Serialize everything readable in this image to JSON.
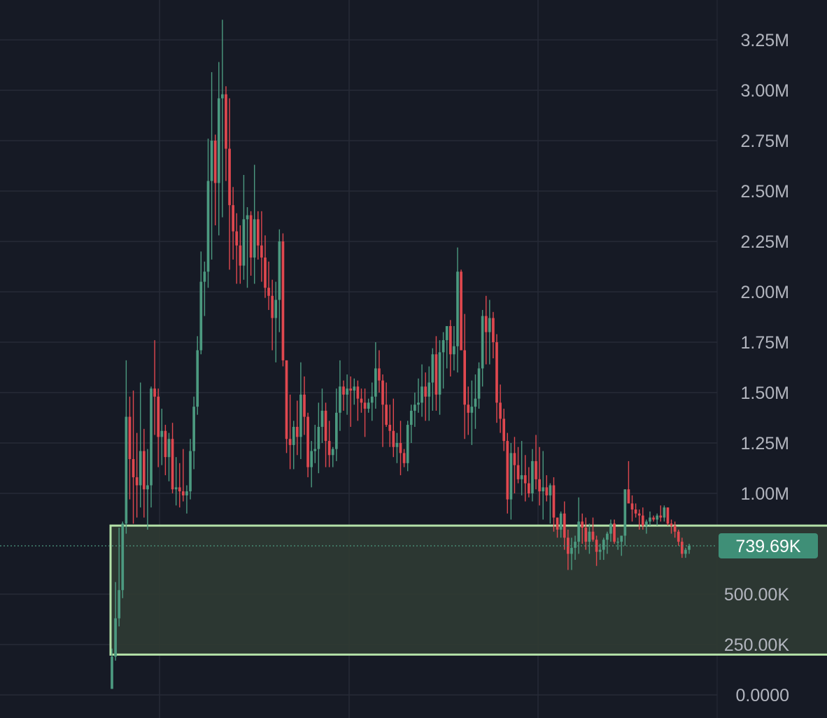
{
  "colors": {
    "background": "#161a25",
    "grid": "#262a36",
    "up": "#4c9a80",
    "down": "#e0484f",
    "axis_text": "#b2b5be",
    "zone_fill": "#2f3a33",
    "zone_stroke": "#b4e1a8",
    "price_line": "#4c9a80",
    "price_badge": "#3f8f77"
  },
  "chart_data": {
    "type": "candlestick",
    "ylim": [
      0,
      3350000
    ],
    "y_ticks": [
      {
        "value": 3250000,
        "label": "3.25M"
      },
      {
        "value": 3000000,
        "label": "3.00M"
      },
      {
        "value": 2750000,
        "label": "2.75M"
      },
      {
        "value": 2500000,
        "label": "2.50M"
      },
      {
        "value": 2250000,
        "label": "2.25M"
      },
      {
        "value": 2000000,
        "label": "2.00M"
      },
      {
        "value": 1750000,
        "label": "1.75M"
      },
      {
        "value": 1500000,
        "label": "1.50M"
      },
      {
        "value": 1250000,
        "label": "1.25M"
      },
      {
        "value": 1000000,
        "label": "1.00M"
      },
      {
        "value": 500000,
        "label": "500.00K"
      },
      {
        "value": 250000,
        "label": "250.00K"
      },
      {
        "value": 0,
        "label": "0.0000"
      }
    ],
    "grid": true,
    "last_price": {
      "value": 739690,
      "label": "739.69K"
    },
    "highlight_zone": {
      "low": 200000,
      "high": 840000,
      "start_candle": 0,
      "end_candle": 199
    },
    "candles": [
      [
        30,
        230,
        30,
        190
      ],
      [
        190,
        560,
        170,
        380
      ],
      [
        380,
        830,
        340,
        520
      ],
      [
        520,
        860,
        480,
        850
      ],
      [
        850,
        1660,
        800,
        1380
      ],
      [
        1380,
        1480,
        970,
        1170
      ],
      [
        1170,
        1510,
        850,
        1080
      ],
      [
        1080,
        1300,
        880,
        1040
      ],
      [
        1040,
        1550,
        930,
        1210
      ],
      [
        1210,
        1320,
        880,
        1020
      ],
      [
        1020,
        1220,
        820,
        1040
      ],
      [
        1040,
        1530,
        930,
        1520
      ],
      [
        1520,
        1760,
        1290,
        1480
      ],
      [
        1480,
        1520,
        1130,
        1280
      ],
      [
        1280,
        1420,
        1140,
        1310
      ],
      [
        1310,
        1340,
        1090,
        1180
      ],
      [
        1180,
        1300,
        1060,
        1270
      ],
      [
        1270,
        1350,
        1000,
        1020
      ],
      [
        1020,
        1180,
        940,
        1030
      ],
      [
        1030,
        1150,
        930,
        1010
      ],
      [
        1010,
        1220,
        960,
        990
      ],
      [
        990,
        1040,
        900,
        1010
      ],
      [
        1010,
        1270,
        970,
        1210
      ],
      [
        1210,
        1480,
        1120,
        1430
      ],
      [
        1430,
        1780,
        1390,
        1710
      ],
      [
        1710,
        2200,
        1690,
        2050
      ],
      [
        2050,
        2150,
        1880,
        2100
      ],
      [
        2100,
        2760,
        2020,
        2550
      ],
      [
        2550,
        3090,
        2160,
        2750
      ],
      [
        2750,
        2780,
        2330,
        2540
      ],
      [
        2540,
        3140,
        2280,
        2960
      ],
      [
        2960,
        3350,
        2370,
        2980
      ],
      [
        2980,
        3020,
        2550,
        2710
      ],
      [
        2710,
        2960,
        2110,
        2430
      ],
      [
        2430,
        2520,
        2160,
        2300
      ],
      [
        2300,
        2390,
        2040,
        2230
      ],
      [
        2230,
        2330,
        2040,
        2130
      ],
      [
        2130,
        2580,
        2060,
        2360
      ],
      [
        2360,
        2420,
        2020,
        2380
      ],
      [
        2380,
        2400,
        2080,
        2170
      ],
      [
        2170,
        2630,
        2040,
        2360
      ],
      [
        2360,
        2400,
        2160,
        2230
      ],
      [
        2230,
        2400,
        2050,
        2170
      ],
      [
        2170,
        2280,
        1970,
        2020
      ],
      [
        2020,
        2150,
        1910,
        1980
      ],
      [
        1980,
        2060,
        1710,
        1870
      ],
      [
        1870,
        2050,
        1650,
        1960
      ],
      [
        1960,
        2310,
        1800,
        2250
      ],
      [
        2250,
        2290,
        1630,
        1660
      ],
      [
        1660,
        1660,
        1200,
        1270
      ],
      [
        1270,
        1490,
        1120,
        1240
      ],
      [
        1240,
        1360,
        1120,
        1330
      ],
      [
        1330,
        1460,
        1190,
        1280
      ],
      [
        1280,
        1650,
        1170,
        1490
      ],
      [
        1490,
        1580,
        1290,
        1380
      ],
      [
        1380,
        1400,
        1080,
        1130
      ],
      [
        1130,
        1260,
        1030,
        1210
      ],
      [
        1210,
        1340,
        1150,
        1220
      ],
      [
        1220,
        1450,
        1100,
        1330
      ],
      [
        1330,
        1520,
        1250,
        1410
      ],
      [
        1410,
        1450,
        1130,
        1260
      ],
      [
        1260,
        1360,
        1130,
        1190
      ],
      [
        1190,
        1230,
        1130,
        1220
      ],
      [
        1220,
        1520,
        1160,
        1400
      ],
      [
        1400,
        1660,
        1310,
        1530
      ],
      [
        1530,
        1560,
        1410,
        1490
      ],
      [
        1490,
        1590,
        1390,
        1520
      ],
      [
        1520,
        1580,
        1330,
        1510
      ],
      [
        1510,
        1570,
        1440,
        1530
      ],
      [
        1530,
        1560,
        1360,
        1470
      ],
      [
        1470,
        1520,
        1400,
        1450
      ],
      [
        1450,
        1520,
        1280,
        1420
      ],
      [
        1420,
        1470,
        1400,
        1450
      ],
      [
        1450,
        1550,
        1360,
        1480
      ],
      [
        1480,
        1750,
        1420,
        1620
      ],
      [
        1620,
        1710,
        1500,
        1560
      ],
      [
        1560,
        1590,
        1230,
        1440
      ],
      [
        1440,
        1550,
        1330,
        1340
      ],
      [
        1340,
        1440,
        1230,
        1310
      ],
      [
        1310,
        1470,
        1180,
        1230
      ],
      [
        1230,
        1300,
        1150,
        1250
      ],
      [
        1250,
        1360,
        1090,
        1200
      ],
      [
        1200,
        1220,
        1130,
        1150
      ],
      [
        1150,
        1360,
        1110,
        1340
      ],
      [
        1340,
        1440,
        1250,
        1410
      ],
      [
        1410,
        1500,
        1330,
        1440
      ],
      [
        1440,
        1570,
        1400,
        1450
      ],
      [
        1450,
        1640,
        1380,
        1530
      ],
      [
        1530,
        1600,
        1360,
        1480
      ],
      [
        1480,
        1630,
        1360,
        1550
      ],
      [
        1550,
        1720,
        1410,
        1690
      ],
      [
        1690,
        1780,
        1410,
        1490
      ],
      [
        1490,
        1760,
        1390,
        1700
      ],
      [
        1700,
        1800,
        1520,
        1760
      ],
      [
        1760,
        1810,
        1620,
        1830
      ],
      [
        1830,
        1860,
        1580,
        1690
      ],
      [
        1690,
        1830,
        1610,
        1730
      ],
      [
        1730,
        2220,
        1600,
        2100
      ],
      [
        2100,
        2110,
        1730,
        1710
      ],
      [
        1710,
        1890,
        1270,
        1440
      ],
      [
        1440,
        1530,
        1290,
        1400
      ],
      [
        1400,
        1560,
        1240,
        1430
      ],
      [
        1430,
        1590,
        1320,
        1470
      ],
      [
        1470,
        1650,
        1420,
        1620
      ],
      [
        1620,
        1910,
        1530,
        1880
      ],
      [
        1880,
        1980,
        1640,
        1800
      ],
      [
        1800,
        1960,
        1640,
        1870
      ],
      [
        1870,
        1900,
        1670,
        1750
      ],
      [
        1750,
        1790,
        1350,
        1450
      ],
      [
        1450,
        1540,
        1300,
        1370
      ],
      [
        1370,
        1420,
        1210,
        1260
      ],
      [
        1260,
        1300,
        900,
        970
      ],
      [
        970,
        1250,
        870,
        1200
      ],
      [
        1200,
        1280,
        1000,
        1140
      ],
      [
        1140,
        1230,
        1050,
        1070
      ],
      [
        1070,
        1260,
        990,
        1090
      ],
      [
        1090,
        1190,
        960,
        1050
      ],
      [
        1050,
        1130,
        980,
        1000
      ],
      [
        1000,
        1220,
        960,
        1160
      ],
      [
        1160,
        1290,
        1020,
        1070
      ],
      [
        1070,
        1230,
        940,
        1010
      ],
      [
        1010,
        1210,
        870,
        1030
      ],
      [
        1030,
        1090,
        960,
        990
      ],
      [
        990,
        1050,
        850,
        1040
      ],
      [
        1040,
        1080,
        810,
        880
      ],
      [
        880,
        880,
        780,
        820
      ],
      [
        820,
        910,
        780,
        900
      ],
      [
        900,
        960,
        720,
        780
      ],
      [
        780,
        820,
        620,
        700
      ],
      [
        700,
        780,
        620,
        730
      ],
      [
        730,
        790,
        670,
        760
      ],
      [
        760,
        980,
        700,
        860
      ],
      [
        860,
        900,
        750,
        830
      ],
      [
        830,
        880,
        720,
        760
      ],
      [
        760,
        850,
        700,
        810
      ],
      [
        810,
        880,
        760,
        770
      ],
      [
        770,
        790,
        640,
        710
      ],
      [
        710,
        750,
        670,
        720
      ],
      [
        720,
        780,
        670,
        770
      ],
      [
        770,
        810,
        700,
        800
      ],
      [
        800,
        870,
        760,
        850
      ],
      [
        850,
        870,
        750,
        760
      ],
      [
        760,
        780,
        720,
        760
      ],
      [
        760,
        790,
        690,
        790
      ],
      [
        790,
        1020,
        740,
        1020
      ],
      [
        1020,
        1160,
        960,
        950
      ],
      [
        950,
        990,
        860,
        920
      ],
      [
        920,
        950,
        880,
        900
      ],
      [
        900,
        920,
        820,
        890
      ],
      [
        890,
        930,
        820,
        840
      ],
      [
        840,
        870,
        800,
        860
      ],
      [
        860,
        910,
        840,
        880
      ],
      [
        880,
        890,
        860,
        870
      ],
      [
        870,
        900,
        840,
        890
      ],
      [
        890,
        940,
        860,
        880
      ],
      [
        880,
        940,
        860,
        930
      ],
      [
        930,
        930,
        840,
        850
      ],
      [
        850,
        870,
        800,
        840
      ],
      [
        840,
        860,
        780,
        810
      ],
      [
        810,
        820,
        740,
        760
      ],
      [
        760,
        780,
        680,
        700
      ],
      [
        700,
        730,
        680,
        720
      ],
      [
        720,
        750,
        700,
        740
      ]
    ]
  }
}
